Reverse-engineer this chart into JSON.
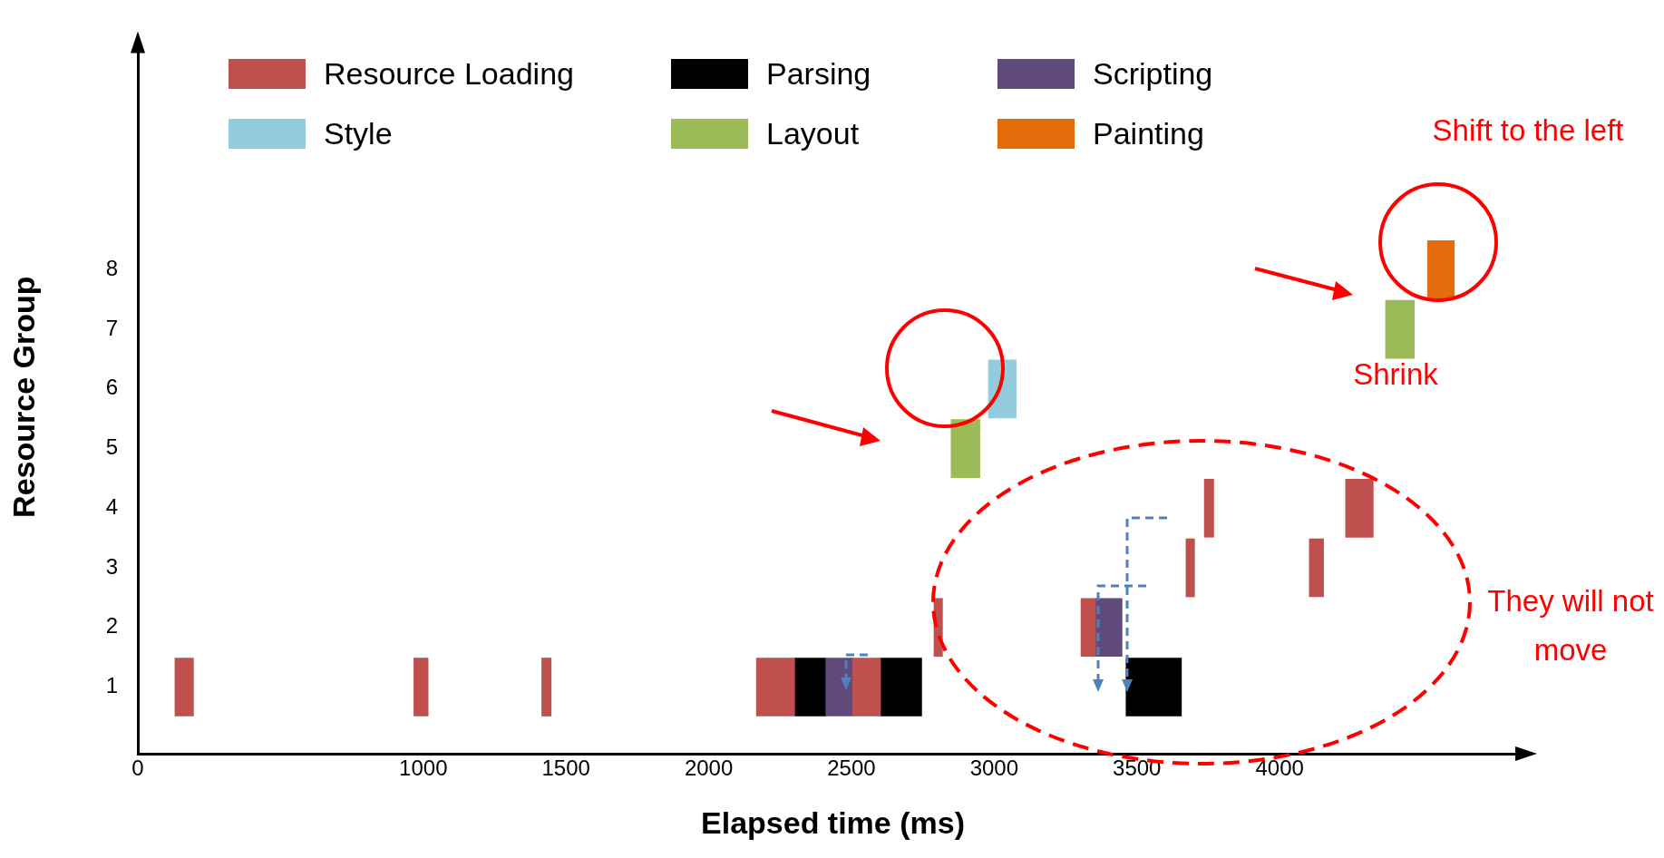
{
  "chart_data": {
    "type": "bar",
    "orientation": "horizontal",
    "xlabel": "Elapsed time (ms)",
    "ylabel": "Resource Group",
    "categories": [
      "8",
      "7",
      "6",
      "5",
      "4",
      "3",
      "2",
      "1"
    ],
    "xlim": [
      0,
      4870
    ],
    "xticks": [
      0,
      1000,
      1500,
      2000,
      2500,
      3000,
      3500,
      4000
    ],
    "series": [
      {
        "name": "Resource Loading",
        "color": "#c0504d",
        "base": [
          null,
          null,
          null,
          null,
          3736,
          3672,
          2789,
          130
        ],
        "values": [
          null,
          null,
          null,
          null,
          33,
          30,
          30,
          65
        ]
      },
      {
        "color": "#c0504d",
        "base": [
          null,
          null,
          null,
          null,
          4231,
          4104,
          3304,
          967
        ],
        "values": [
          null,
          null,
          null,
          null,
          97,
          50,
          51,
          50
        ]
      },
      {
        "color": "#c0504d",
        "base": [
          null,
          null,
          null,
          null,
          null,
          null,
          null,
          1415
        ],
        "values": [
          null,
          null,
          null,
          null,
          null,
          null,
          null,
          33
        ]
      },
      {
        "color": "#c0504d",
        "base": [
          null,
          null,
          null,
          null,
          null,
          null,
          null,
          2167
        ],
        "values": [
          null,
          null,
          null,
          null,
          null,
          null,
          null,
          134
        ]
      },
      {
        "color": "#c0504d",
        "base": [
          null,
          null,
          null,
          null,
          null,
          null,
          null,
          2505
        ],
        "values": [
          null,
          null,
          null,
          null,
          null,
          null,
          null,
          97
        ]
      },
      {
        "name": "Parsing",
        "color": "#000000",
        "base": [
          null,
          null,
          null,
          null,
          null,
          null,
          null,
          2301
        ],
        "values": [
          null,
          null,
          null,
          null,
          null,
          null,
          null,
          107
        ]
      },
      {
        "color": "#000000",
        "base": [
          null,
          null,
          null,
          null,
          null,
          null,
          null,
          2602
        ],
        "values": [
          null,
          null,
          null,
          null,
          null,
          null,
          null,
          144
        ]
      },
      {
        "color": "#000000",
        "base": [
          null,
          null,
          null,
          null,
          null,
          null,
          null,
          3462
        ],
        "values": [
          null,
          null,
          null,
          null,
          null,
          null,
          null,
          194
        ]
      },
      {
        "name": "Scripting",
        "color": "#604a7b",
        "base": [
          null,
          null,
          null,
          null,
          null,
          null,
          3355,
          2408
        ],
        "values": [
          null,
          null,
          null,
          null,
          null,
          null,
          93,
          97
        ]
      },
      {
        "name": "Style",
        "color": "#93cddd",
        "base": [
          null,
          null,
          2980,
          null,
          null,
          null,
          null,
          null
        ],
        "values": [
          null,
          null,
          97,
          null,
          null,
          null,
          null,
          null
        ]
      },
      {
        "name": "Layout",
        "color": "#9bbb59",
        "base": [
          null,
          4371,
          null,
          2849,
          null,
          null,
          null,
          null
        ],
        "values": [
          null,
          101,
          null,
          101,
          null,
          null,
          null,
          null
        ]
      },
      {
        "name": "Painting",
        "color": "#e46c0a",
        "base": [
          4518,
          null,
          null,
          null,
          null,
          null,
          null,
          null
        ],
        "values": [
          94,
          null,
          null,
          null,
          null,
          null,
          null,
          null
        ]
      }
    ],
    "legend": "top",
    "grid": false,
    "annotations": [
      "Shift to the left",
      "Shrink",
      "They will not move"
    ]
  }
}
